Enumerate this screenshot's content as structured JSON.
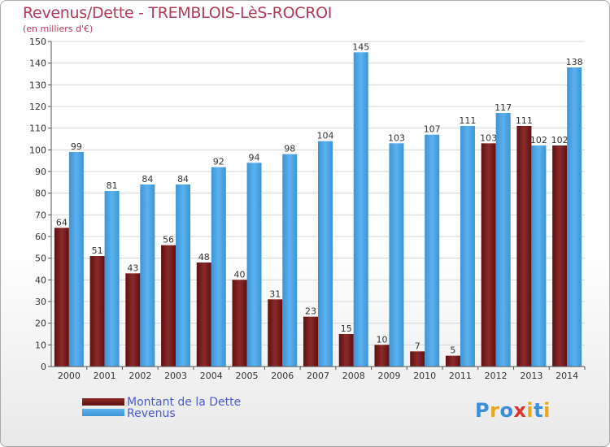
{
  "title": "Revenus/Dette - TREMBLOIS-LèS-ROCROI",
  "subtitle": "(en milliers d'€)",
  "logo": {
    "letters": [
      "P",
      "r",
      "o",
      "x",
      "i",
      "t",
      "i"
    ],
    "colors": [
      "#3b8ed8",
      "#e8a81c",
      "#3b8ed8",
      "#d9372e",
      "#e8a81c",
      "#3b8ed8",
      "#e8a81c"
    ]
  },
  "colors": {
    "dette": "#7a1e1e",
    "revenus": "#4ea6e6"
  },
  "chart_data": {
    "type": "bar",
    "categories": [
      "2000",
      "2001",
      "2002",
      "2003",
      "2004",
      "2005",
      "2006",
      "2007",
      "2008",
      "2009",
      "2010",
      "2011",
      "2012",
      "2013",
      "2014"
    ],
    "series": [
      {
        "name": "Montant de la Dette",
        "values": [
          64,
          51,
          43,
          56,
          48,
          40,
          31,
          23,
          15,
          10,
          7,
          5,
          103,
          111,
          102
        ]
      },
      {
        "name": "Revenus",
        "values": [
          99,
          81,
          84,
          84,
          92,
          94,
          98,
          104,
          145,
          103,
          107,
          111,
          117,
          102,
          138
        ]
      }
    ],
    "yticks": [
      "0",
      "10",
      "20",
      "30",
      "40",
      "50",
      "60",
      "70",
      "80",
      "90",
      "100",
      "110",
      "120",
      "130",
      "140",
      "150"
    ],
    "ylim": [
      0,
      150
    ],
    "grid": true,
    "legend_position": "bottom-left"
  }
}
